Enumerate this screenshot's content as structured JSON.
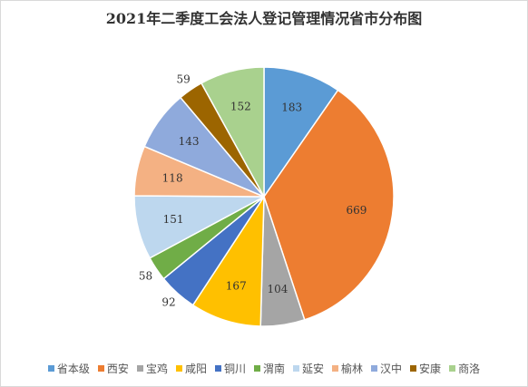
{
  "chart_data": {
    "type": "pie",
    "title": "2021年二季度工会法人登记管理情况省市分布图",
    "categories": [
      "省本级",
      "西安",
      "宝鸡",
      "咸阳",
      "铜川",
      "渭南",
      "延安",
      "榆林",
      "汉中",
      "安康",
      "商洛"
    ],
    "values": [
      183,
      669,
      104,
      167,
      92,
      58,
      151,
      118,
      143,
      59,
      152
    ],
    "colors": [
      "#5b9bd5",
      "#ed7d31",
      "#a5a5a5",
      "#ffc000",
      "#4472c4",
      "#70ad47",
      "#bdd7ee",
      "#f4b183",
      "#8faadc",
      "#9c6500",
      "#a9d18e"
    ],
    "legend": "bottom"
  }
}
